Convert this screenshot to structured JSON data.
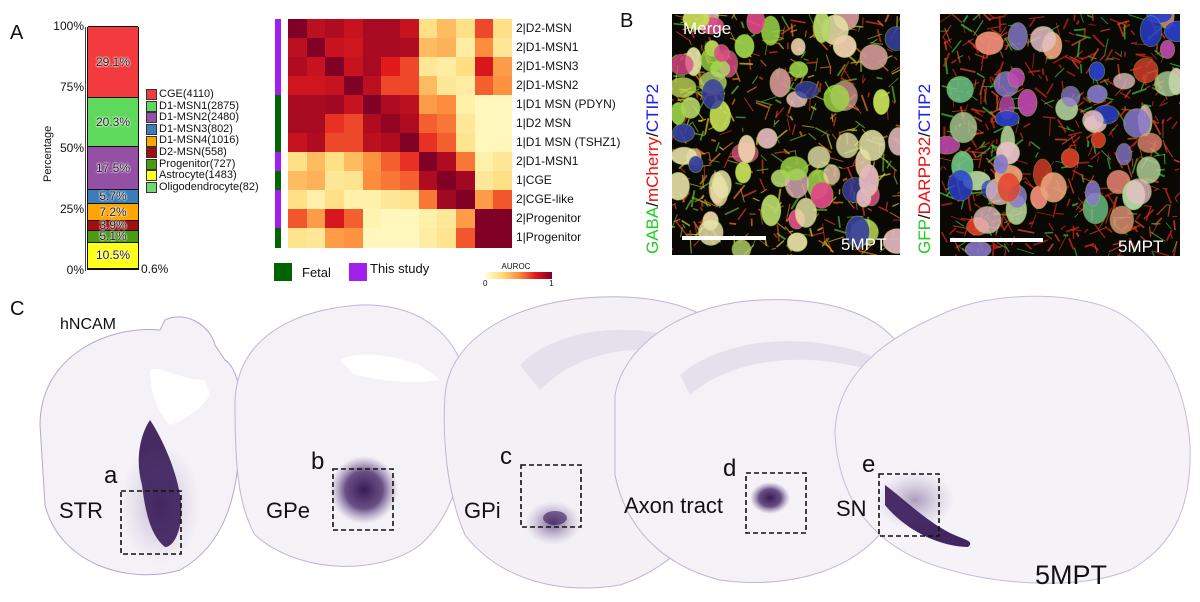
{
  "panels": {
    "a": "A",
    "b": "B",
    "c": "C"
  },
  "chart_data": [
    {
      "type": "bar",
      "subtype": "stacked-100",
      "title": "",
      "xlabel": "",
      "ylabel": "Percentage",
      "ylim": [
        0,
        100
      ],
      "yticks": [
        "0%",
        "25%",
        "50%",
        "75%",
        "100%"
      ],
      "legend_position": "right",
      "series": [
        {
          "name": "CGE(4110)",
          "key": "CGE",
          "value": 29.1,
          "label": "29.1%",
          "color": "#f23a3f"
        },
        {
          "name": "D1-MSN1(2875)",
          "key": "D1-MSN1",
          "value": 20.3,
          "label": "20.3%",
          "color": "#5ed95c"
        },
        {
          "name": "D1-MSN2(2480)",
          "key": "D1-MSN2",
          "value": 17.5,
          "label": "17.5%",
          "color": "#9350a4"
        },
        {
          "name": "D1-MSN3(802)",
          "key": "D1-MSN3",
          "value": 5.7,
          "label": "5.7%",
          "color": "#3c7db8"
        },
        {
          "name": "D1-MSN4(1016)",
          "key": "D1-MSN4",
          "value": 7.2,
          "label": "7.2%",
          "color": "#ffa500"
        },
        {
          "name": "D2-MSN(558)",
          "key": "D2-MSN",
          "value": 3.9,
          "label": "3.9%",
          "color": "#a20d0d"
        },
        {
          "name": "Progenitor(727)",
          "key": "Progenitor",
          "value": 5.1,
          "label": "5.1%",
          "color": "#4a9a14"
        },
        {
          "name": "Astrocyte(1483)",
          "key": "Astrocyte",
          "value": 10.5,
          "label": "10.5%",
          "color": "#ffff1a"
        },
        {
          "name": "Oligodendrocyte(82)",
          "key": "Oligodendrocyte",
          "value": 0.6,
          "label": "0.6%",
          "color": "#6fd86f"
        }
      ]
    },
    {
      "type": "heatmap",
      "title": "",
      "colorbar_title": "AUROC",
      "colorbar_ticks": [
        "0",
        "1"
      ],
      "range": [
        0,
        1
      ],
      "colors": [
        "#ffffcc",
        "#fed976",
        "#fd8d3c",
        "#e31a1c",
        "#800026"
      ],
      "rows": [
        "2|D2-MSN",
        "2|D1-MSN1",
        "2|D1-MSN3",
        "2|D1-MSN2",
        "1|D1 MSN (PDYN)",
        "1|D2 MSN",
        "1|D1 MSN (TSHZ1)",
        "2|D1-MSN1",
        "1|CGE",
        "2|CGE-like",
        "2|Progenitor",
        "1|Progenitor"
      ],
      "row_groups": [
        "This study",
        "This study",
        "This study",
        "This study",
        "Fetal",
        "Fetal",
        "Fetal",
        "This study",
        "Fetal",
        "This study",
        "This study",
        "Fetal"
      ],
      "values": [
        [
          1.0,
          0.85,
          0.88,
          0.82,
          0.9,
          0.9,
          0.82,
          0.2,
          0.35,
          0.2,
          0.65,
          0.2
        ],
        [
          0.85,
          1.0,
          0.82,
          0.8,
          0.9,
          0.9,
          0.88,
          0.35,
          0.38,
          0.12,
          0.5,
          0.15
        ],
        [
          0.88,
          0.82,
          1.0,
          0.82,
          0.9,
          0.75,
          0.65,
          0.15,
          0.12,
          0.22,
          0.78,
          0.45
        ],
        [
          0.8,
          0.8,
          0.82,
          1.0,
          0.85,
          0.65,
          0.65,
          0.35,
          0.15,
          0.12,
          0.6,
          0.48
        ],
        [
          0.9,
          0.9,
          0.92,
          0.82,
          1.0,
          0.88,
          0.85,
          0.45,
          0.5,
          0.1,
          0.05,
          0.05
        ],
        [
          0.9,
          0.9,
          0.7,
          0.65,
          0.88,
          0.95,
          0.88,
          0.6,
          0.55,
          0.15,
          0.05,
          0.05
        ],
        [
          0.82,
          0.88,
          0.65,
          0.65,
          0.85,
          0.88,
          1.0,
          0.7,
          0.6,
          0.18,
          0.05,
          0.05
        ],
        [
          0.2,
          0.35,
          0.2,
          0.35,
          0.48,
          0.6,
          0.7,
          1.0,
          0.88,
          0.55,
          0.1,
          0.15
        ],
        [
          0.35,
          0.38,
          0.15,
          0.18,
          0.5,
          0.55,
          0.6,
          0.88,
          1.0,
          0.92,
          0.15,
          0.2
        ],
        [
          0.2,
          0.1,
          0.2,
          0.1,
          0.1,
          0.15,
          0.18,
          0.55,
          0.92,
          1.0,
          0.45,
          0.62
        ],
        [
          0.62,
          0.45,
          0.78,
          0.6,
          0.08,
          0.05,
          0.05,
          0.1,
          0.15,
          0.45,
          1.0,
          1.0
        ],
        [
          0.18,
          0.15,
          0.45,
          0.48,
          0.05,
          0.05,
          0.05,
          0.12,
          0.18,
          0.62,
          1.0,
          1.0
        ]
      ],
      "legend": [
        {
          "label": "Fetal",
          "color": "#006400"
        },
        {
          "label": "This study",
          "color": "#a020f0"
        }
      ]
    }
  ],
  "panel_b": {
    "left": {
      "stain_parts": [
        {
          "text": "GABA",
          "color": "#22cc22"
        },
        {
          "text": "/",
          "color": "#111111"
        },
        {
          "text": "mCherry",
          "color": "#ee1111"
        },
        {
          "text": "/",
          "color": "#111111"
        },
        {
          "text": "CTIP2",
          "color": "#1a1aee"
        }
      ],
      "overlay_label": "Merge",
      "timepoint": "5MPT"
    },
    "right": {
      "stain_parts": [
        {
          "text": "GFP",
          "color": "#22cc22"
        },
        {
          "text": "/",
          "color": "#111111"
        },
        {
          "text": "DARPP32",
          "color": "#ee1111"
        },
        {
          "text": "/",
          "color": "#111111"
        },
        {
          "text": "CTIP2",
          "color": "#1a1aee"
        }
      ],
      "timepoint": "5MPT"
    }
  },
  "panel_c": {
    "stain": "hNCAM",
    "timepoint": "5MPT",
    "stain_color": "#3b1a5e",
    "regions": [
      {
        "letter": "a",
        "name": "STR"
      },
      {
        "letter": "b",
        "name": "GPe"
      },
      {
        "letter": "c",
        "name": "GPi"
      },
      {
        "letter": "d",
        "name": "Axon tract"
      },
      {
        "letter": "e",
        "name": "SN"
      }
    ]
  }
}
